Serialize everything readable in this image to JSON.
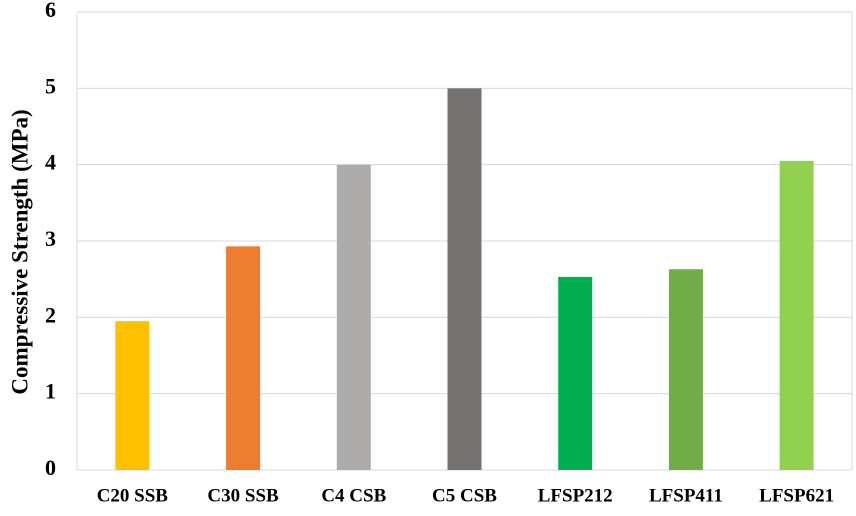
{
  "chart_data": {
    "type": "bar",
    "title": "",
    "xlabel": "",
    "ylabel": "Compressive Strength (MPa)",
    "categories": [
      "C20 SSB",
      "C30 SSB",
      "C4 CSB",
      "C5 CSB",
      "LFSP212",
      "LFSP411",
      "LFSP621"
    ],
    "values": [
      1.95,
      2.93,
      4.0,
      5.0,
      2.53,
      2.63,
      4.05
    ],
    "colors": [
      "#FFC000",
      "#ED7D31",
      "#AEABAB",
      "#757171",
      "#00B050",
      "#70AD47",
      "#92D050"
    ],
    "ylim": [
      0,
      6
    ],
    "yticks": [
      0,
      1,
      2,
      3,
      4,
      5,
      6
    ],
    "grid": true,
    "legend": "none"
  }
}
